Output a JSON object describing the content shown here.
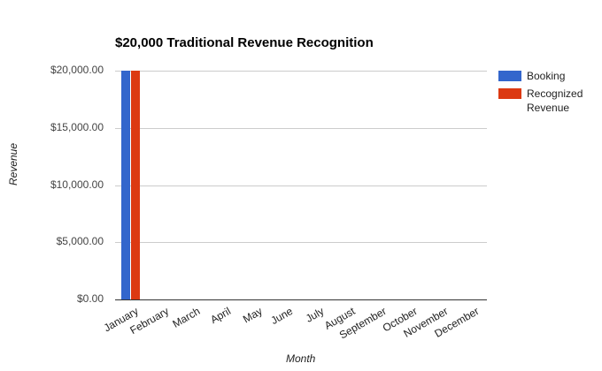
{
  "chart_data": {
    "type": "bar",
    "title": "$20,000 Traditional Revenue Recognition",
    "xlabel": "Month",
    "ylabel": "Revenue",
    "ylim": [
      0,
      20000
    ],
    "yticks": [
      "$0.00",
      "$5,000.00",
      "$10,000.00",
      "$15,000.00",
      "$20,000.00"
    ],
    "grid": true,
    "legend_position": "right",
    "categories": [
      "January",
      "February",
      "March",
      "April",
      "May",
      "June",
      "July",
      "August",
      "September",
      "October",
      "November",
      "December"
    ],
    "series": [
      {
        "name": "Booking",
        "color": "#3366cc",
        "values": [
          20000,
          0,
          0,
          0,
          0,
          0,
          0,
          0,
          0,
          0,
          0,
          0
        ]
      },
      {
        "name": "Recognized Revenue",
        "color": "#dc3912",
        "values": [
          20000,
          0,
          0,
          0,
          0,
          0,
          0,
          0,
          0,
          0,
          0,
          0
        ]
      }
    ]
  }
}
